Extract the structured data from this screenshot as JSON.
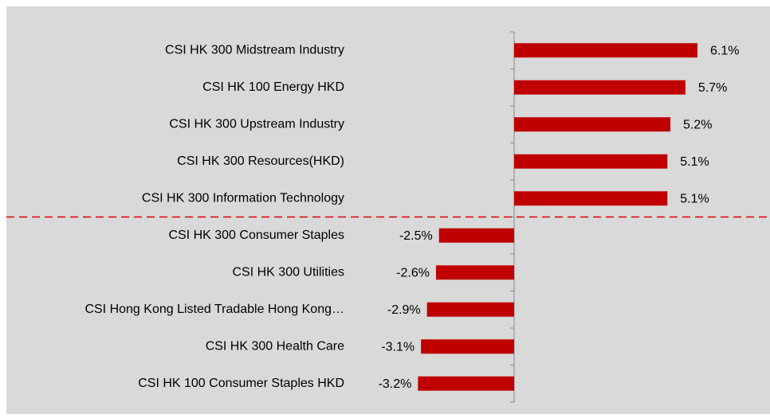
{
  "chart_data": {
    "type": "bar",
    "orientation": "horizontal",
    "categories": [
      "CSI HK 300 Midstream Industry",
      "CSI HK 100 Energy HKD",
      "CSI HK 300 Upstream Industry",
      "CSI HK 300 Resources(HKD)",
      "CSI HK 300 Information Technology",
      "CSI HK 300 Consumer Staples",
      "CSI HK 300 Utilities",
      "CSI Hong Kong Listed Tradable Hong Kong…",
      "CSI HK 300 Health Care",
      "CSI HK 100 Consumer Staples HKD"
    ],
    "values": [
      6.1,
      5.7,
      5.2,
      5.1,
      5.1,
      -2.5,
      -2.6,
      -2.9,
      -3.1,
      -3.2
    ],
    "value_labels": [
      "6.1%",
      "5.7%",
      "5.2%",
      "5.1%",
      "5.1%",
      "-2.5%",
      "-2.6%",
      "-2.9%",
      "-3.1%",
      "-3.2%"
    ],
    "color": "#c00000"
  }
}
